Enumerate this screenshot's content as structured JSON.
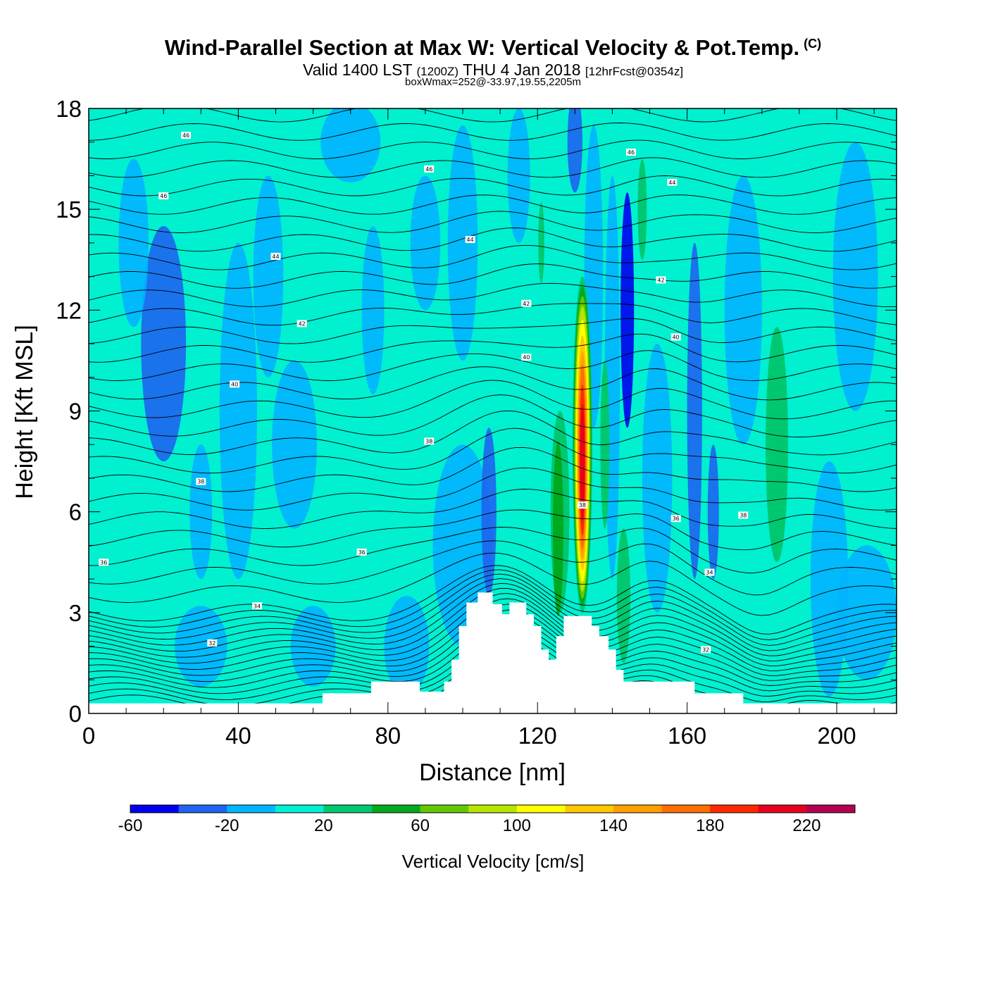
{
  "header": {
    "title": "Wind-Parallel Section at Max W: Vertical Velocity & Pot.Temp.",
    "copyright": "(C)",
    "valid_prefix": "Valid 1400 LST",
    "valid_zulu": "(1200Z)",
    "valid_date": "THU 4 Jan 2018",
    "forecast": "[12hrFcst@0354z]",
    "note": "boxWmax=252@-33.97,19.55,2205m"
  },
  "chart_data": {
    "type": "heatmap",
    "title": "Wind-Parallel Section at Max W: Vertical Velocity & Pot.Temp.",
    "xlabel": "Distance [nm]",
    "ylabel": "Height [Kft MSL]",
    "xlim": [
      0,
      216
    ],
    "ylim": [
      0,
      18
    ],
    "xticks": [
      0,
      40,
      80,
      120,
      160,
      200
    ],
    "yticks": [
      0,
      3,
      6,
      9,
      12,
      15,
      18
    ],
    "colorbar": {
      "title": "Vertical Velocity [cm/s]",
      "levels": [
        -60,
        -40,
        -20,
        0,
        20,
        40,
        60,
        80,
        100,
        120,
        140,
        160,
        180,
        200,
        220,
        240
      ],
      "labels": [
        -60,
        -20,
        20,
        60,
        100,
        140,
        180,
        220
      ],
      "colors": [
        "#0000ee",
        "#1e64f0",
        "#00b4ff",
        "#00f0d0",
        "#00c870",
        "#00aa1e",
        "#64c800",
        "#b4e600",
        "#ffff00",
        "#ffc800",
        "#ffa000",
        "#ff6e00",
        "#ff2800",
        "#e6001e",
        "#b40050"
      ]
    },
    "contour_labels": [
      {
        "text": "46",
        "x": 26,
        "y": 17.2
      },
      {
        "text": "46",
        "x": 91,
        "y": 16.2
      },
      {
        "text": "46",
        "x": 145,
        "y": 16.7
      },
      {
        "text": "46",
        "x": 20,
        "y": 15.4
      },
      {
        "text": "44",
        "x": 156,
        "y": 15.8
      },
      {
        "text": "44",
        "x": 102,
        "y": 14.1
      },
      {
        "text": "44",
        "x": 50,
        "y": 13.6
      },
      {
        "text": "42",
        "x": 153,
        "y": 12.9
      },
      {
        "text": "42",
        "x": 117,
        "y": 12.2
      },
      {
        "text": "42",
        "x": 57,
        "y": 11.6
      },
      {
        "text": "40",
        "x": 157,
        "y": 11.2
      },
      {
        "text": "40",
        "x": 117,
        "y": 10.6
      },
      {
        "text": "40",
        "x": 39,
        "y": 9.8
      },
      {
        "text": "38",
        "x": 91,
        "y": 8.1
      },
      {
        "text": "38",
        "x": 30,
        "y": 6.9
      },
      {
        "text": "38",
        "x": 132,
        "y": 6.2
      },
      {
        "text": "38",
        "x": 175,
        "y": 5.9
      },
      {
        "text": "36",
        "x": 157,
        "y": 5.8
      },
      {
        "text": "36",
        "x": 73,
        "y": 4.8
      },
      {
        "text": "36",
        "x": 4,
        "y": 4.5
      },
      {
        "text": "34",
        "x": 166,
        "y": 4.2
      },
      {
        "text": "34",
        "x": 45,
        "y": 3.2
      },
      {
        "text": "32",
        "x": 33,
        "y": 2.1
      },
      {
        "text": "32",
        "x": 165,
        "y": 1.9
      }
    ],
    "terrain_profile": {
      "x": [
        0,
        62.5,
        62.5,
        75.5,
        75.5,
        88.5,
        88.5,
        95,
        95,
        97,
        97,
        99,
        99,
        101,
        101,
        104,
        104,
        108,
        108,
        110.5,
        110.5,
        112.5,
        112.5,
        117,
        117,
        119,
        119,
        121,
        121,
        123,
        123,
        125,
        125,
        127,
        127,
        128,
        128,
        134.5,
        134.5,
        136.5,
        136.5,
        139,
        139,
        141,
        141,
        143,
        143,
        145,
        145,
        162,
        162,
        175,
        175,
        216
      ],
      "y": [
        0.3,
        0.3,
        0.6,
        0.6,
        0.95,
        0.95,
        0.65,
        0.65,
        0.95,
        0.95,
        1.6,
        1.6,
        2.6,
        2.6,
        3.3,
        3.3,
        3.6,
        3.6,
        3.25,
        3.25,
        2.95,
        2.95,
        3.3,
        3.3,
        2.95,
        2.95,
        2.6,
        2.6,
        1.9,
        1.9,
        1.6,
        1.6,
        2.3,
        2.3,
        2.9,
        2.9,
        2.9,
        2.9,
        2.6,
        2.6,
        2.3,
        2.3,
        1.9,
        1.9,
        1.3,
        1.3,
        0.95,
        0.95,
        0.95,
        0.95,
        0.6,
        0.6,
        0.3,
        0.3
      ]
    },
    "updraft_core": {
      "x": 132,
      "height_range": [
        3.0,
        13.0
      ],
      "peak": 252
    }
  }
}
